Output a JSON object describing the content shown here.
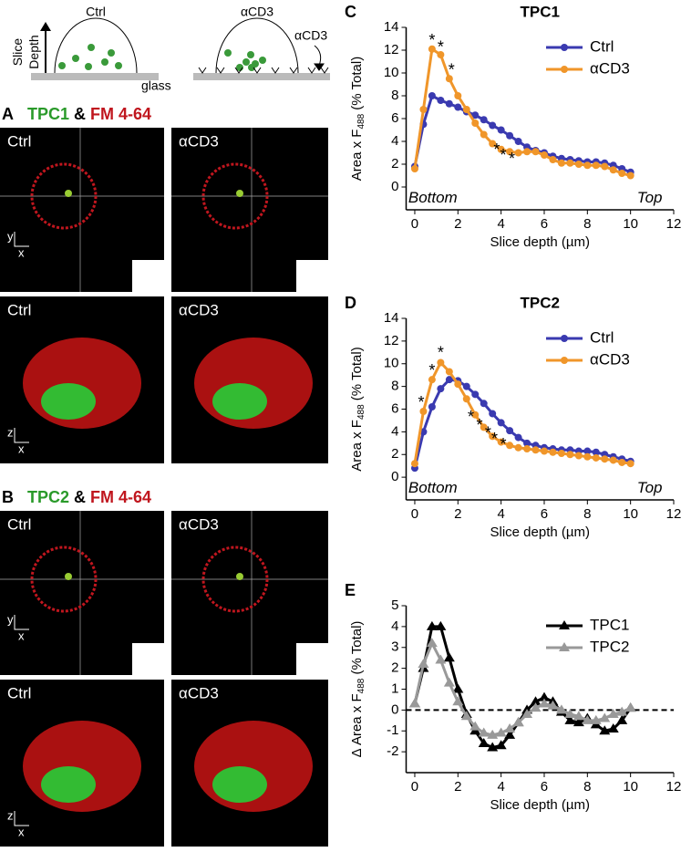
{
  "schematic": {
    "ctrl": "Ctrl",
    "acd3": "αCD3",
    "axis_label": [
      "Slice",
      "Depth"
    ],
    "glass": "glass",
    "antibody": "αCD3"
  },
  "axis_glyphs": {
    "x": "x",
    "y": "y",
    "z": "z"
  },
  "panels": [
    {
      "letter": "A",
      "title": [
        "TPC1",
        "&",
        "FM 4-64"
      ],
      "images": [
        "Ctrl",
        "αCD3",
        "Ctrl",
        "αCD3"
      ]
    },
    {
      "letter": "B",
      "title": [
        "TPC2",
        "&",
        "FM 4-64"
      ],
      "images": [
        "Ctrl",
        "αCD3",
        "Ctrl",
        "αCD3"
      ]
    }
  ],
  "chart_data": [
    {
      "type": "line",
      "panel": "C",
      "title": "TPC1",
      "x_label": "Slice depth (µm)",
      "y_label": [
        "Area x F",
        "488",
        " (% Total)"
      ],
      "x": [
        0,
        0.4,
        0.8,
        1.2,
        1.6,
        2.0,
        2.4,
        2.8,
        3.2,
        3.6,
        4.0,
        4.4,
        4.8,
        5.2,
        5.6,
        6.0,
        6.4,
        6.8,
        7.2,
        7.6,
        8.0,
        8.4,
        8.8,
        9.2,
        9.6,
        10.0
      ],
      "series": [
        {
          "name": "Ctrl",
          "color": "#3a3ab0",
          "marker": "circle",
          "values": [
            1.8,
            5.5,
            8.0,
            7.6,
            7.3,
            7.0,
            6.6,
            6.3,
            5.9,
            5.4,
            5.0,
            4.5,
            4.0,
            3.5,
            3.2,
            3.0,
            2.7,
            2.5,
            2.4,
            2.3,
            2.2,
            2.2,
            2.1,
            1.9,
            1.6,
            1.3
          ]
        },
        {
          "name": "αCD3",
          "color": "#f0962a",
          "marker": "circle",
          "values": [
            1.6,
            6.8,
            12.1,
            11.6,
            9.5,
            8.0,
            6.8,
            5.6,
            4.6,
            3.8,
            3.3,
            3.1,
            3.0,
            3.1,
            3.1,
            2.8,
            2.4,
            2.1,
            2.1,
            2.0,
            1.9,
            1.9,
            1.8,
            1.5,
            1.2,
            1.0
          ]
        }
      ],
      "xlim": [
        -0.4,
        12
      ],
      "xticks": [
        0,
        2,
        4,
        6,
        8,
        10,
        12
      ],
      "ylim": [
        -2,
        14
      ],
      "yticks": [
        0,
        2,
        4,
        6,
        8,
        10,
        12,
        14
      ],
      "legend": "upper right",
      "annotations": [
        {
          "text": "Bottom",
          "x": -0.3,
          "y": -1
        },
        {
          "text": "Top",
          "x": 10.3,
          "y": -1
        },
        {
          "text": "*",
          "x": 0.8,
          "y": 12.8
        },
        {
          "text": "*",
          "x": 1.2,
          "y": 12.2
        },
        {
          "text": "*",
          "x": 1.7,
          "y": 10.2
        },
        {
          "text": "*",
          "x": 3.8,
          "y": 3.2
        },
        {
          "text": "*",
          "x": 4.1,
          "y": 2.7
        },
        {
          "text": "*",
          "x": 4.5,
          "y": 2.4
        }
      ]
    },
    {
      "type": "line",
      "panel": "D",
      "title": "TPC2",
      "x_label": "Slice depth (µm)",
      "y_label": [
        "Area x F",
        "488",
        " (% Total)"
      ],
      "x": [
        0,
        0.4,
        0.8,
        1.2,
        1.6,
        2.0,
        2.4,
        2.8,
        3.2,
        3.6,
        4.0,
        4.4,
        4.8,
        5.2,
        5.6,
        6.0,
        6.4,
        6.8,
        7.2,
        7.6,
        8.0,
        8.4,
        8.8,
        9.2,
        9.6,
        10.0
      ],
      "series": [
        {
          "name": "Ctrl",
          "color": "#3a3ab0",
          "marker": "circle",
          "values": [
            0.8,
            4.0,
            6.2,
            7.8,
            8.6,
            8.5,
            8.0,
            7.3,
            6.5,
            5.6,
            4.8,
            4.1,
            3.5,
            3.0,
            2.8,
            2.6,
            2.5,
            2.4,
            2.4,
            2.3,
            2.3,
            2.2,
            2.0,
            1.8,
            1.6,
            1.4
          ]
        },
        {
          "name": "αCD3",
          "color": "#f0962a",
          "marker": "circle",
          "values": [
            1.2,
            5.8,
            8.6,
            10.1,
            9.3,
            8.2,
            6.9,
            5.5,
            4.4,
            3.6,
            3.1,
            2.8,
            2.6,
            2.5,
            2.4,
            2.3,
            2.2,
            2.1,
            2.0,
            1.9,
            1.8,
            1.7,
            1.6,
            1.5,
            1.3,
            1.2
          ]
        }
      ],
      "xlim": [
        -0.4,
        12
      ],
      "xticks": [
        0,
        2,
        4,
        6,
        8,
        10,
        12
      ],
      "ylim": [
        -2,
        14
      ],
      "yticks": [
        0,
        2,
        4,
        6,
        8,
        10,
        12,
        14
      ],
      "legend": "upper right",
      "annotations": [
        {
          "text": "Bottom",
          "x": -0.3,
          "y": -1
        },
        {
          "text": "Top",
          "x": 10.3,
          "y": -1
        },
        {
          "text": "*",
          "x": 0.3,
          "y": 6.5
        },
        {
          "text": "*",
          "x": 0.8,
          "y": 9.3
        },
        {
          "text": "*",
          "x": 1.2,
          "y": 10.9
        },
        {
          "text": "*",
          "x": 2.6,
          "y": 5.2
        },
        {
          "text": "*",
          "x": 3.0,
          "y": 4.5
        },
        {
          "text": "*",
          "x": 3.4,
          "y": 3.8
        },
        {
          "text": "*",
          "x": 3.7,
          "y": 3.3
        },
        {
          "text": "*",
          "x": 4.1,
          "y": 2.8
        }
      ]
    },
    {
      "type": "line",
      "panel": "E",
      "x_label": "Slice depth (µm)",
      "y_label": [
        "Δ Area x F",
        "488",
        " (% Total)"
      ],
      "x": [
        0,
        0.4,
        0.8,
        1.2,
        1.6,
        2.0,
        2.4,
        2.8,
        3.2,
        3.6,
        4.0,
        4.4,
        4.8,
        5.2,
        5.6,
        6.0,
        6.4,
        6.8,
        7.2,
        7.6,
        8.0,
        8.4,
        8.8,
        9.2,
        9.6,
        10.0
      ],
      "series": [
        {
          "name": "TPC1",
          "color": "#000000",
          "marker": "triangle",
          "values": [
            0.3,
            2.0,
            4.0,
            4.0,
            2.5,
            1.0,
            -0.2,
            -1.0,
            -1.6,
            -1.8,
            -1.7,
            -1.2,
            -0.6,
            0.0,
            0.4,
            0.6,
            0.4,
            -0.1,
            -0.5,
            -0.6,
            -0.4,
            -0.7,
            -1.0,
            -0.9,
            -0.5,
            0.1
          ]
        },
        {
          "name": "TPC2",
          "color": "#999999",
          "marker": "triangle",
          "values": [
            0.3,
            2.2,
            3.2,
            2.4,
            1.3,
            0.4,
            -0.3,
            -0.8,
            -1.1,
            -1.2,
            -1.1,
            -0.9,
            -0.6,
            -0.2,
            0.1,
            0.3,
            0.2,
            0.0,
            -0.2,
            -0.3,
            -0.5,
            -0.5,
            -0.4,
            -0.2,
            -0.1,
            0.1
          ]
        }
      ],
      "xlim": [
        -0.4,
        12
      ],
      "xticks": [
        0,
        2,
        4,
        6,
        8,
        10,
        12
      ],
      "ylim": [
        -3,
        5
      ],
      "yticks": [
        -2,
        -1,
        0,
        1,
        2,
        3,
        4,
        5
      ],
      "reference_line": {
        "y": 0,
        "style": "dashed"
      },
      "legend": "upper right"
    }
  ]
}
